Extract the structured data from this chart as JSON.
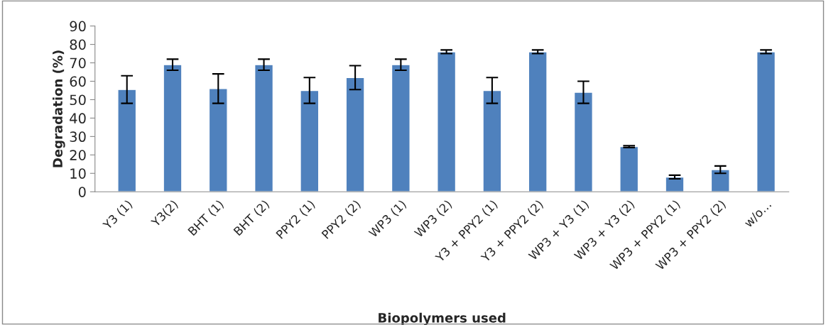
{
  "chart_data": {
    "type": "bar",
    "xlabel": "Biopolymers used",
    "ylabel": "Degradation (%)",
    "categories": [
      "Y3 (1)",
      "Y3(2)",
      "BHT (1)",
      "BHT (2)",
      "PPY2 (1)",
      "PPY2 (2)",
      "WP3 (1)",
      "WP3 (2)",
      "Y3 + PPY2 (1)",
      "Y3 + PPY2 (2)",
      "WP3 + Y3 (1)",
      "WP3 + Y3 (2)",
      "WP3 + PPY2 (1)",
      "WP3 + PPY2 (2)",
      "w/o…"
    ],
    "series": [
      {
        "color": "#4f81bd",
        "values": [
          55.5,
          69,
          56,
          69,
          55,
          62,
          69,
          76,
          55,
          76,
          54,
          24.5,
          8,
          12,
          76
        ],
        "errors": [
          7.5,
          3,
          8,
          3,
          7,
          6.5,
          3,
          1,
          7,
          1,
          6,
          0.5,
          1,
          2,
          1
        ]
      }
    ],
    "ylim": [
      0,
      90
    ],
    "yticks": [
      0,
      10,
      20,
      30,
      40,
      50,
      60,
      70,
      80,
      90
    ],
    "grid": false,
    "legend": false
  }
}
